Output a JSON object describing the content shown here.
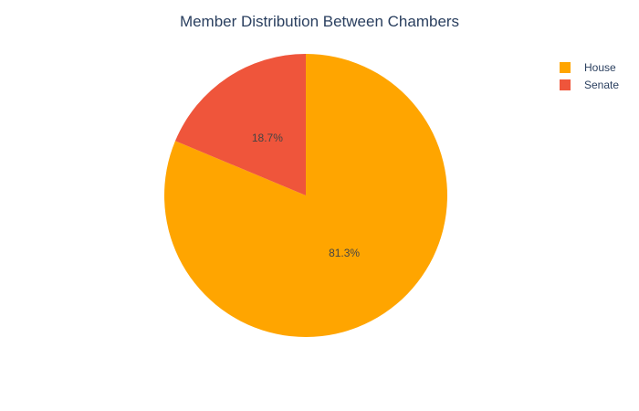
{
  "chart_data": {
    "type": "pie",
    "title": "Member Distribution Between Chambers",
    "categories": [
      "House",
      "Senate"
    ],
    "values": [
      81.3,
      18.7
    ],
    "labels": [
      "81.3%",
      "18.7%"
    ],
    "colors": [
      "#FFA500",
      "#EF553B"
    ],
    "legend": {
      "position": "top-right",
      "entries": [
        "House",
        "Senate"
      ]
    }
  }
}
